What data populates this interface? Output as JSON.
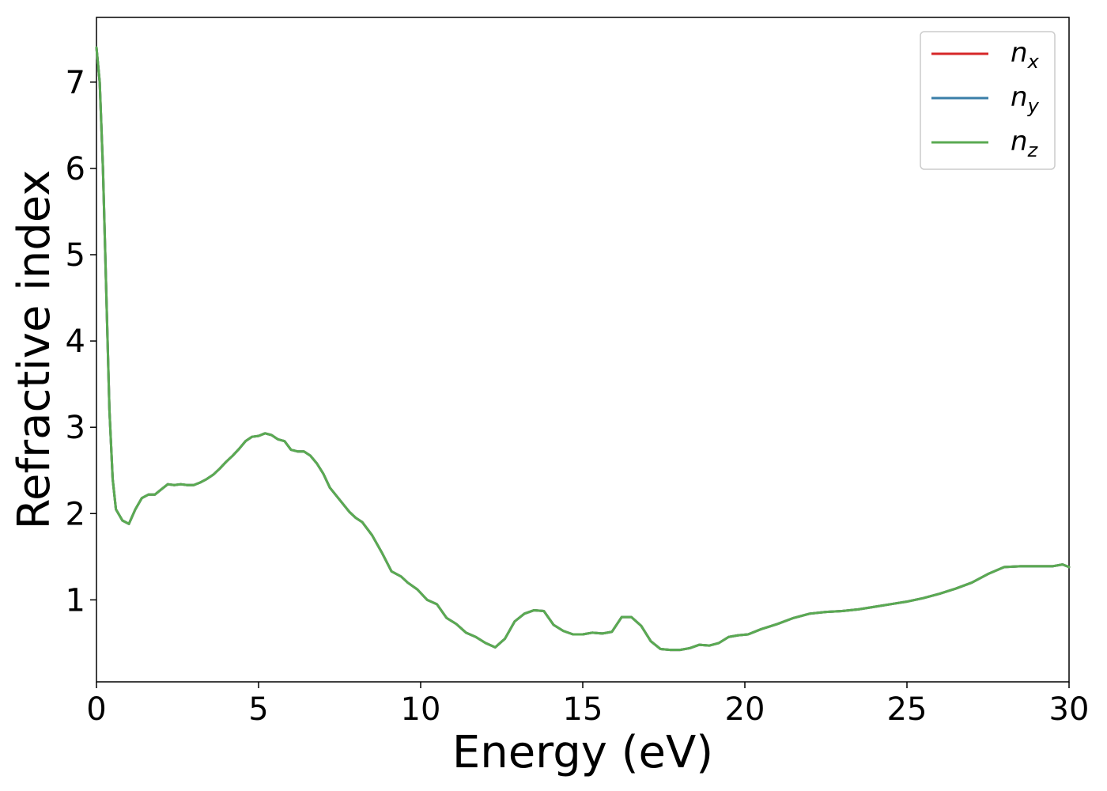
{
  "chart_data": {
    "type": "line",
    "title": "",
    "xlabel": "Energy (eV)",
    "ylabel": "Refractive index",
    "xlim": [
      0,
      30
    ],
    "ylim": [
      0.05,
      7.75
    ],
    "xticks": [
      0,
      5,
      10,
      15,
      20,
      25,
      30
    ],
    "xtick_labels": [
      "0",
      "5",
      "10",
      "15",
      "20",
      "25",
      "30"
    ],
    "yticks": [
      1,
      2,
      3,
      4,
      5,
      6,
      7
    ],
    "ytick_labels": [
      "1",
      "2",
      "3",
      "4",
      "5",
      "6",
      "7"
    ],
    "grid": false,
    "legend_position": "top-right",
    "x": [
      0,
      0.1,
      0.2,
      0.3,
      0.4,
      0.5,
      0.6,
      0.8,
      1.0,
      1.2,
      1.4,
      1.6,
      1.8,
      2.0,
      2.2,
      2.4,
      2.6,
      2.8,
      3.0,
      3.2,
      3.4,
      3.6,
      3.8,
      4.0,
      4.2,
      4.4,
      4.6,
      4.8,
      5.0,
      5.2,
      5.4,
      5.6,
      5.8,
      6.0,
      6.2,
      6.4,
      6.6,
      6.8,
      7.0,
      7.2,
      7.5,
      7.8,
      8.0,
      8.2,
      8.5,
      8.8,
      9.1,
      9.4,
      9.6,
      9.9,
      10.2,
      10.5,
      10.8,
      11.1,
      11.4,
      11.7,
      12.0,
      12.3,
      12.6,
      12.9,
      13.2,
      13.5,
      13.8,
      14.1,
      14.4,
      14.7,
      15.0,
      15.3,
      15.6,
      15.9,
      16.2,
      16.5,
      16.8,
      17.1,
      17.4,
      17.7,
      18.0,
      18.3,
      18.6,
      18.9,
      19.2,
      19.5,
      19.8,
      20.1,
      20.5,
      21.0,
      21.5,
      22.0,
      22.5,
      23.0,
      23.5,
      24.0,
      24.5,
      25.0,
      25.5,
      26.0,
      26.5,
      27.0,
      27.5,
      28.0,
      28.5,
      29.0,
      29.5,
      29.8,
      30.0
    ],
    "series": [
      {
        "name": "n_x",
        "color": "#d62728",
        "y": [
          7.4,
          7.0,
          6.0,
          4.6,
          3.2,
          2.4,
          2.05,
          1.92,
          1.88,
          2.05,
          2.18,
          2.22,
          2.22,
          2.28,
          2.34,
          2.33,
          2.34,
          2.33,
          2.33,
          2.36,
          2.4,
          2.45,
          2.52,
          2.6,
          2.67,
          2.75,
          2.84,
          2.89,
          2.9,
          2.93,
          2.91,
          2.86,
          2.84,
          2.74,
          2.72,
          2.72,
          2.67,
          2.58,
          2.46,
          2.3,
          2.16,
          2.02,
          1.95,
          1.9,
          1.75,
          1.55,
          1.33,
          1.27,
          1.2,
          1.12,
          1.0,
          0.95,
          0.79,
          0.72,
          0.62,
          0.57,
          0.5,
          0.45,
          0.55,
          0.75,
          0.84,
          0.88,
          0.87,
          0.71,
          0.64,
          0.6,
          0.6,
          0.62,
          0.61,
          0.63,
          0.8,
          0.8,
          0.7,
          0.52,
          0.43,
          0.42,
          0.42,
          0.44,
          0.48,
          0.47,
          0.5,
          0.57,
          0.59,
          0.6,
          0.66,
          0.72,
          0.79,
          0.84,
          0.86,
          0.87,
          0.89,
          0.92,
          0.95,
          0.98,
          1.02,
          1.07,
          1.13,
          1.2,
          1.3,
          1.38,
          1.39,
          1.39,
          1.39,
          1.41,
          1.38
        ]
      },
      {
        "name": "n_y",
        "color": "#3a7ea8",
        "y": [
          7.4,
          7.0,
          6.0,
          4.6,
          3.2,
          2.4,
          2.05,
          1.92,
          1.88,
          2.05,
          2.18,
          2.22,
          2.22,
          2.28,
          2.34,
          2.33,
          2.34,
          2.33,
          2.33,
          2.36,
          2.4,
          2.45,
          2.52,
          2.6,
          2.67,
          2.75,
          2.84,
          2.89,
          2.9,
          2.93,
          2.91,
          2.86,
          2.84,
          2.74,
          2.72,
          2.72,
          2.67,
          2.58,
          2.46,
          2.3,
          2.16,
          2.02,
          1.95,
          1.9,
          1.75,
          1.55,
          1.33,
          1.27,
          1.2,
          1.12,
          1.0,
          0.95,
          0.79,
          0.72,
          0.62,
          0.57,
          0.5,
          0.45,
          0.55,
          0.75,
          0.84,
          0.88,
          0.87,
          0.71,
          0.64,
          0.6,
          0.6,
          0.62,
          0.61,
          0.63,
          0.8,
          0.8,
          0.7,
          0.52,
          0.43,
          0.42,
          0.42,
          0.44,
          0.48,
          0.47,
          0.5,
          0.57,
          0.59,
          0.6,
          0.66,
          0.72,
          0.79,
          0.84,
          0.86,
          0.87,
          0.89,
          0.92,
          0.95,
          0.98,
          1.02,
          1.07,
          1.13,
          1.2,
          1.3,
          1.38,
          1.39,
          1.39,
          1.39,
          1.41,
          1.38
        ]
      },
      {
        "name": "n_z",
        "color": "#5aaa52",
        "y": [
          7.4,
          7.0,
          6.0,
          4.6,
          3.2,
          2.4,
          2.05,
          1.92,
          1.88,
          2.05,
          2.18,
          2.22,
          2.22,
          2.28,
          2.34,
          2.33,
          2.34,
          2.33,
          2.33,
          2.36,
          2.4,
          2.45,
          2.52,
          2.6,
          2.67,
          2.75,
          2.84,
          2.89,
          2.9,
          2.93,
          2.91,
          2.86,
          2.84,
          2.74,
          2.72,
          2.72,
          2.67,
          2.58,
          2.46,
          2.3,
          2.16,
          2.02,
          1.95,
          1.9,
          1.75,
          1.55,
          1.33,
          1.27,
          1.2,
          1.12,
          1.0,
          0.95,
          0.79,
          0.72,
          0.62,
          0.57,
          0.5,
          0.45,
          0.55,
          0.75,
          0.84,
          0.88,
          0.87,
          0.71,
          0.64,
          0.6,
          0.6,
          0.62,
          0.61,
          0.63,
          0.8,
          0.8,
          0.7,
          0.52,
          0.43,
          0.42,
          0.42,
          0.44,
          0.48,
          0.47,
          0.5,
          0.57,
          0.59,
          0.6,
          0.66,
          0.72,
          0.79,
          0.84,
          0.86,
          0.87,
          0.89,
          0.92,
          0.95,
          0.98,
          1.02,
          1.07,
          1.13,
          1.2,
          1.3,
          1.38,
          1.39,
          1.39,
          1.39,
          1.41,
          1.38
        ]
      }
    ],
    "legend": [
      {
        "main": "n",
        "sub": "x",
        "color": "#d62728"
      },
      {
        "main": "n",
        "sub": "y",
        "color": "#3a7ea8"
      },
      {
        "main": "n",
        "sub": "z",
        "color": "#5aaa52"
      }
    ]
  }
}
